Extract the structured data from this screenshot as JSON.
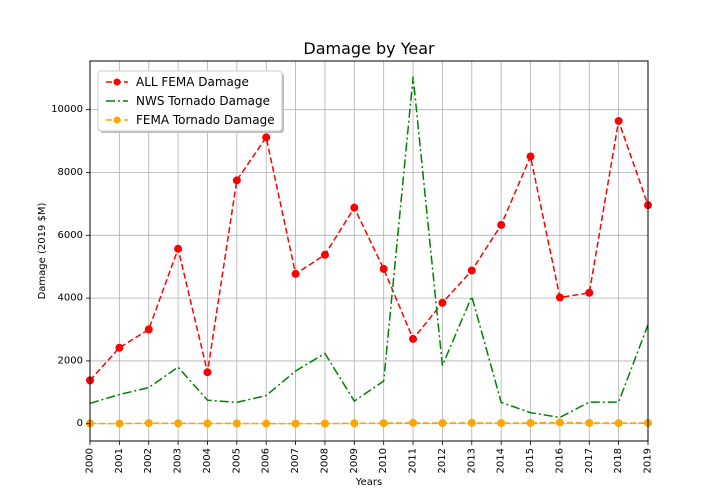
{
  "chart_data": {
    "type": "line",
    "title": "Damage by Year",
    "xlabel": "Years",
    "ylabel": "Damage (2019 $M)",
    "x": [
      2000,
      2001,
      2002,
      2003,
      2004,
      2005,
      2006,
      2007,
      2008,
      2009,
      2010,
      2011,
      2012,
      2013,
      2014,
      2015,
      2016,
      2017,
      2018,
      2019
    ],
    "xlim": [
      2000,
      2019
    ],
    "ylim": [
      -550,
      11550
    ],
    "yticks": [
      0,
      2000,
      4000,
      6000,
      8000,
      10000
    ],
    "grid": true,
    "legend_position": "top-left",
    "series": [
      {
        "name": "ALL FEMA Damage",
        "color": "#ff0000",
        "line_style": "dashed",
        "marker": "circle",
        "values": [
          1380,
          2420,
          3000,
          5570,
          1640,
          7750,
          9120,
          4770,
          5380,
          6880,
          4930,
          2700,
          3850,
          4880,
          6330,
          8510,
          4020,
          4170,
          9640,
          6960
        ]
      },
      {
        "name": "NWS Tornado Damage",
        "color": "#008000",
        "line_style": "dashdot",
        "marker": "none",
        "values": [
          650,
          930,
          1150,
          1800,
          750,
          680,
          900,
          1680,
          2240,
          720,
          1360,
          11050,
          1850,
          4050,
          680,
          350,
          200,
          690,
          690,
          3150
        ]
      },
      {
        "name": "FEMA Tornado Damage",
        "color": "#ffa500",
        "line_style": "dashed",
        "marker": "circle",
        "values": [
          10,
          5,
          20,
          15,
          10,
          10,
          5,
          5,
          5,
          15,
          20,
          30,
          20,
          30,
          20,
          25,
          40,
          25,
          20,
          25
        ]
      }
    ]
  }
}
